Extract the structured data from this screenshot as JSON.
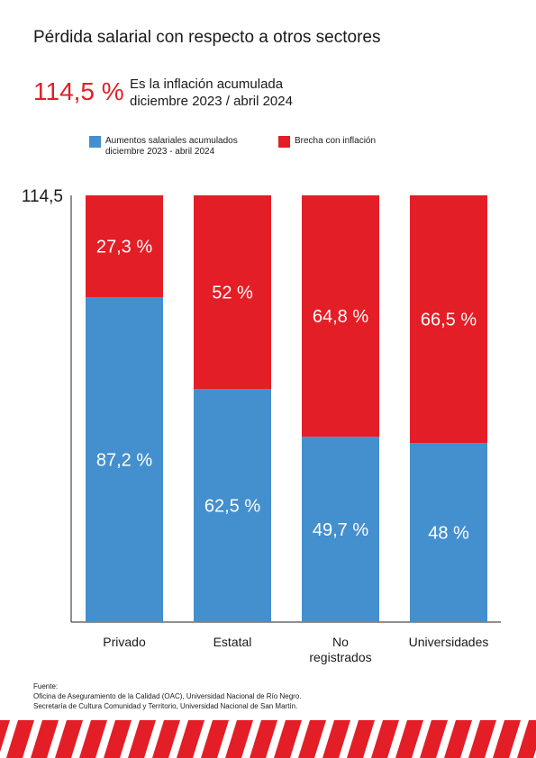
{
  "title": "Pérdida salarial con respecto a otros sectores",
  "highlight": {
    "value": "114,5 %",
    "line1": "Es la inflación acumulada",
    "line2": "diciembre 2023 / abril 2024"
  },
  "colors": {
    "accent": "#e41e26",
    "blue": "#448fcd",
    "red": "#e41e26"
  },
  "source": {
    "heading": "Fuente:",
    "line1": "Oficina de Aseguramiento de la Calidad (OAC), Universidad Nacional de Río Negro.",
    "line2": "Secretaría de Cultura Comunidad y Territorio, Universidad Nacional de San Martín."
  },
  "chart_data": {
    "type": "bar",
    "stacked": true,
    "categories": [
      "Privado",
      "Estatal",
      "No registrados",
      "Universidades"
    ],
    "series": [
      {
        "name_lines": [
          "Aumentos salariales acumulados",
          "diciembre 2023 - abril 2024"
        ],
        "color": "#448fcd",
        "values": [
          87.2,
          62.5,
          49.7,
          48
        ],
        "labels": [
          "87,2 %",
          "62,5 %",
          "49,7 %",
          "48 %"
        ]
      },
      {
        "name": "Brecha con inflación",
        "color": "#e41e26",
        "values": [
          27.3,
          52,
          64.8,
          66.5
        ],
        "labels": [
          "27,3 %",
          "52 %",
          "64,8 %",
          "66,5 %"
        ]
      }
    ],
    "ylim": [
      0,
      114.5
    ],
    "y_tick_label": "114,5",
    "grid": false,
    "legend": "top"
  }
}
